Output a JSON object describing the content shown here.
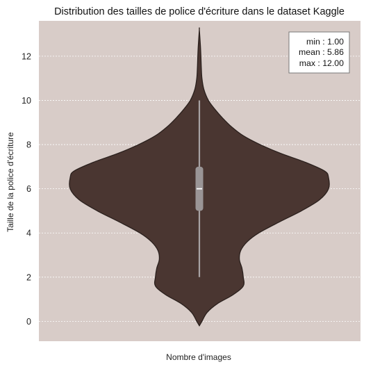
{
  "chart_data": {
    "type": "violin",
    "title": "Distribution des tailles de police d'écriture dans le dataset Kaggle",
    "xlabel": "Nombre d'images",
    "ylabel": "Taille de la police d'écriture",
    "ylim": [
      -0.9,
      13.6
    ],
    "yticks": [
      0,
      2,
      4,
      6,
      8,
      10,
      12
    ],
    "grid": true,
    "grid_axis": "y",
    "colors": {
      "plot_background": "#d8ccc8",
      "violin_fill": "#4a3631",
      "violin_edge": "#2a201d",
      "box": "#9a9596",
      "whisker": "#a8a3a4",
      "median": "#ffffff",
      "grid": "#ffffff"
    },
    "box": {
      "whisker_low": 2,
      "q1": 5,
      "median": 6,
      "q3": 7,
      "whisker_high": 10
    },
    "density_profile": [
      {
        "y": -0.2,
        "w": 0.0
      },
      {
        "y": 0.0,
        "w": 0.02
      },
      {
        "y": 0.4,
        "w": 0.06
      },
      {
        "y": 0.8,
        "w": 0.14
      },
      {
        "y": 1.2,
        "w": 0.26
      },
      {
        "y": 1.6,
        "w": 0.34
      },
      {
        "y": 2.0,
        "w": 0.34
      },
      {
        "y": 2.4,
        "w": 0.33
      },
      {
        "y": 2.8,
        "w": 0.31
      },
      {
        "y": 3.2,
        "w": 0.32
      },
      {
        "y": 3.6,
        "w": 0.37
      },
      {
        "y": 4.0,
        "w": 0.46
      },
      {
        "y": 4.5,
        "w": 0.62
      },
      {
        "y": 5.0,
        "w": 0.79
      },
      {
        "y": 5.5,
        "w": 0.93
      },
      {
        "y": 6.0,
        "w": 1.0
      },
      {
        "y": 6.5,
        "w": 1.0
      },
      {
        "y": 6.8,
        "w": 0.97
      },
      {
        "y": 7.2,
        "w": 0.82
      },
      {
        "y": 7.6,
        "w": 0.63
      },
      {
        "y": 8.0,
        "w": 0.47
      },
      {
        "y": 8.4,
        "w": 0.34
      },
      {
        "y": 8.8,
        "w": 0.25
      },
      {
        "y": 9.2,
        "w": 0.18
      },
      {
        "y": 9.6,
        "w": 0.12
      },
      {
        "y": 10.0,
        "w": 0.07
      },
      {
        "y": 10.5,
        "w": 0.035
      },
      {
        "y": 11.0,
        "w": 0.02
      },
      {
        "y": 11.5,
        "w": 0.015
      },
      {
        "y": 12.0,
        "w": 0.012
      },
      {
        "y": 12.5,
        "w": 0.008
      },
      {
        "y": 13.2,
        "w": 0.0
      }
    ],
    "stats": {
      "min": "min : 1.00",
      "mean": "mean : 5.86",
      "max": "max : 12.00"
    }
  }
}
